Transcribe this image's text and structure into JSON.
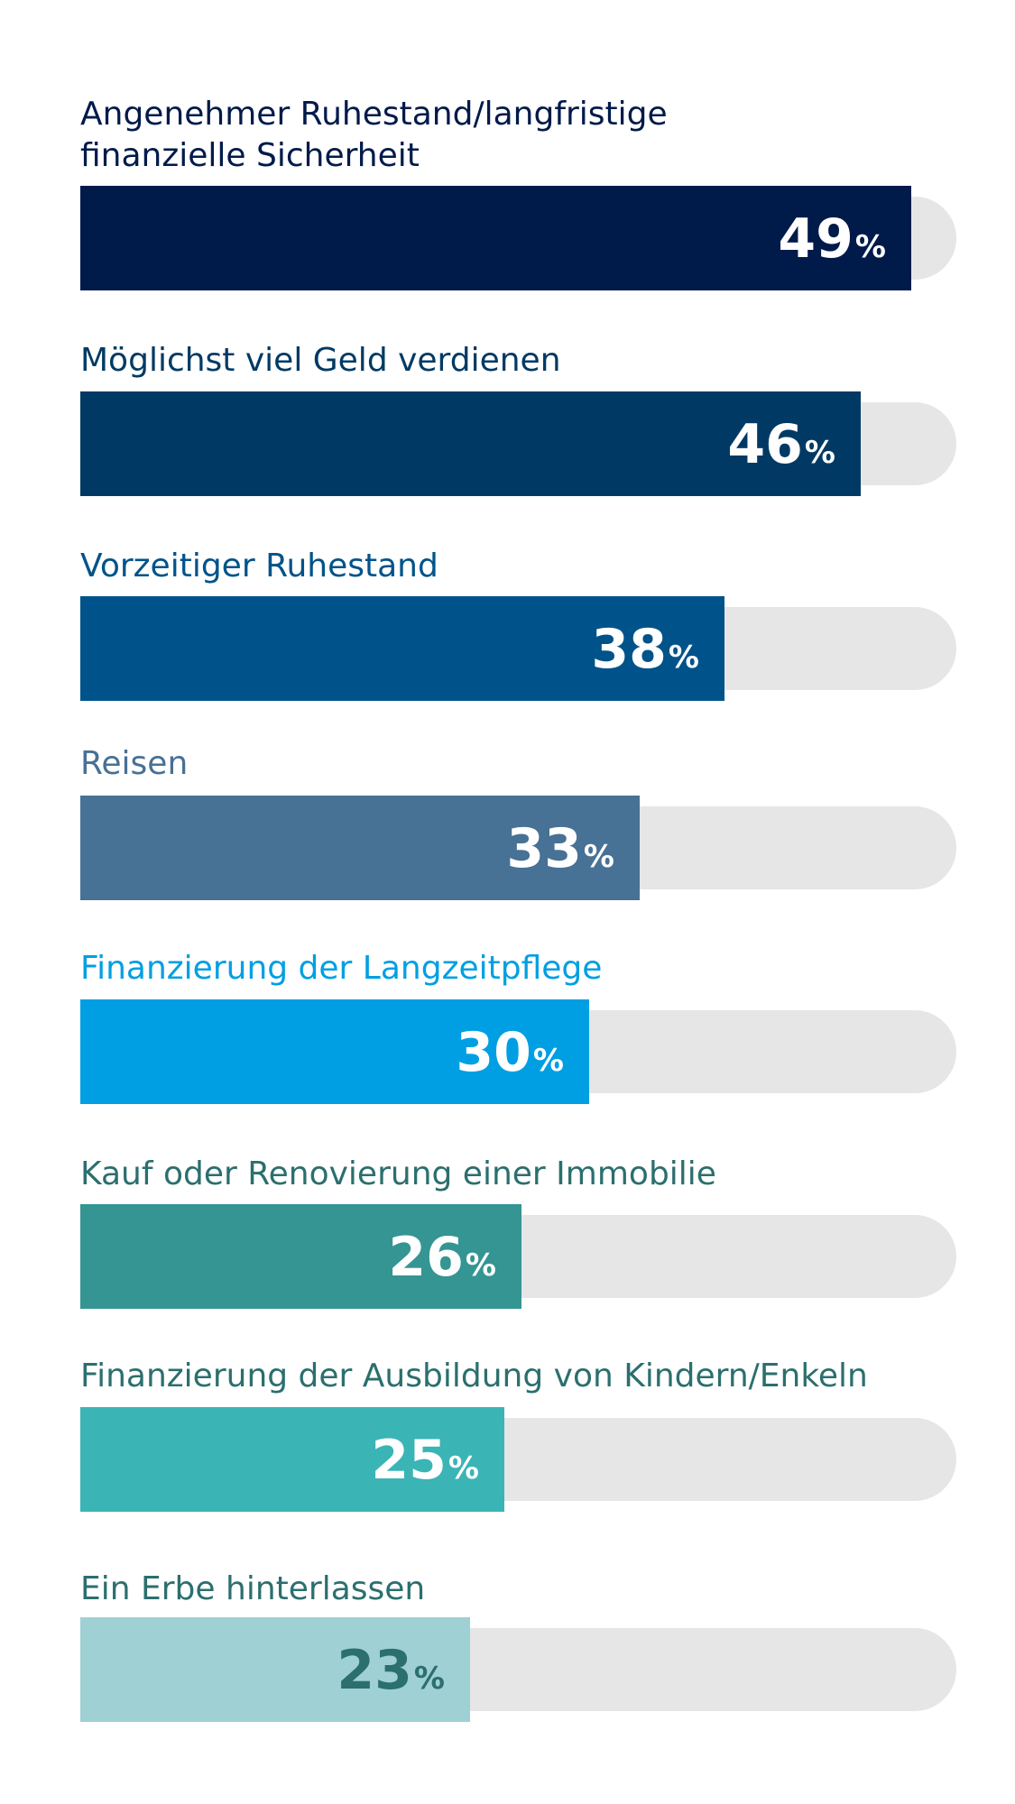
{
  "chart_data": {
    "type": "bar",
    "orientation": "horizontal",
    "unit": "%",
    "xlim": [
      0,
      49
    ],
    "grid": false,
    "legend": "none",
    "categories": [
      [
        "Angenehmer Ruhestand/langfristige",
        "finanzielle Sicherheit"
      ],
      [
        "Möglichst viel Geld verdienen"
      ],
      [
        "Vorzeitiger Ruhestand"
      ],
      [
        "Reisen"
      ],
      [
        "Finanzierung der Langzeitpflege"
      ],
      [
        "Kauf oder Renovierung einer Immobilie"
      ],
      [
        "Finanzierung der Ausbildung von Kindern/Enkeln"
      ],
      [
        "Ein Erbe hinterlassen"
      ]
    ],
    "values": [
      49,
      46,
      38,
      33,
      30,
      26,
      25,
      23
    ],
    "value_labels": [
      "49",
      "46",
      "38",
      "33",
      "30",
      "26",
      "25",
      "23"
    ],
    "colors": {
      "bars": [
        "#001a4a",
        "#003a64",
        "#00538a",
        "#477195",
        "#009fe3",
        "#349593",
        "#3bb4b6",
        "#9fd0d4"
      ],
      "labels": [
        "#001a4a",
        "#003a64",
        "#00538a",
        "#477195",
        "#009fe3",
        "#2b6f6e",
        "#2b6f6e",
        "#2b6f6e"
      ],
      "value_text": [
        "#ffffff",
        "#ffffff",
        "#ffffff",
        "#ffffff",
        "#ffffff",
        "#ffffff",
        "#ffffff",
        "#2b6f6e"
      ],
      "track": "#e6e6e6"
    }
  }
}
